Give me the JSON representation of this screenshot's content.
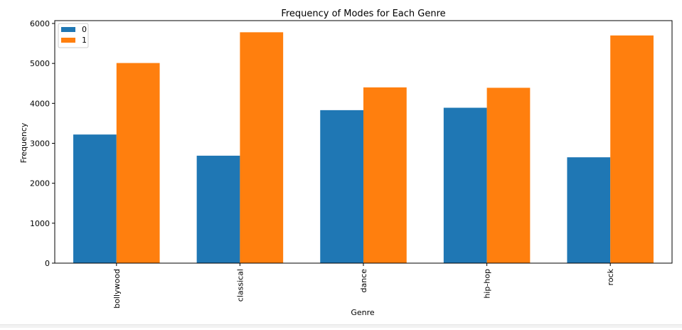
{
  "chart_data": {
    "type": "bar",
    "title": "Frequency of Modes for Each Genre",
    "xlabel": "Genre",
    "ylabel": "Frequency",
    "categories": [
      "bollywood",
      "classical",
      "dance",
      "hip-hop",
      "rock"
    ],
    "series": [
      {
        "name": "0",
        "color": "#1f77b4",
        "values": [
          3220,
          2690,
          3830,
          3890,
          2650
        ]
      },
      {
        "name": "1",
        "color": "#ff7f0e",
        "values": [
          5010,
          5780,
          4400,
          4390,
          5700
        ]
      }
    ],
    "ylim": [
      0,
      6000
    ],
    "yticks": [
      0,
      1000,
      2000,
      3000,
      4000,
      5000,
      6000
    ],
    "grid": false,
    "legend_position": "upper-left"
  }
}
